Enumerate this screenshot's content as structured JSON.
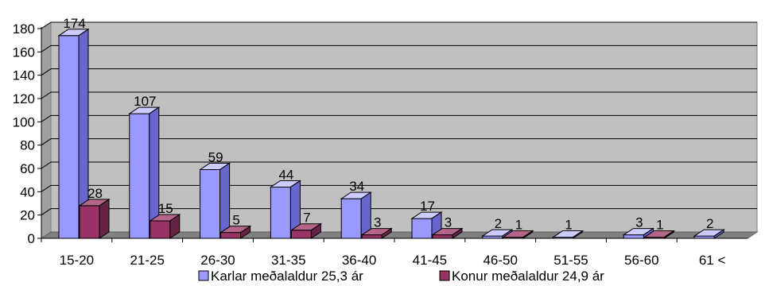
{
  "chart_data": {
    "type": "bar",
    "categories": [
      "15-20",
      "21-25",
      "26-30",
      "31-35",
      "36-40",
      "41-45",
      "46-50",
      "51-55",
      "56-60",
      "61 <"
    ],
    "series": [
      {
        "name": "Karlar meðalaldur 25,3 ár",
        "values": [
          174,
          107,
          59,
          44,
          34,
          17,
          2,
          1,
          3,
          2
        ],
        "labels": [
          "174",
          "107",
          "59",
          "44",
          "34",
          "17",
          "2",
          "1",
          "3",
          "2"
        ]
      },
      {
        "name": "Konur meðalaldur 24,9 ár",
        "values": [
          28,
          15,
          5,
          7,
          3,
          3,
          1,
          null,
          1,
          null
        ],
        "labels": [
          "28",
          "15",
          "5",
          "7",
          "3",
          "3",
          "1",
          "",
          "1",
          ""
        ]
      }
    ],
    "ylim": [
      0,
      180
    ],
    "yticks": [
      "0",
      "20",
      "40",
      "60",
      "80",
      "100",
      "120",
      "140",
      "160",
      "180"
    ],
    "grid": true,
    "legend_position": "bottom"
  },
  "colors": {
    "series_front": [
      "#9999ff",
      "#993366"
    ],
    "series_top": [
      "#ccccff",
      "#b3668a"
    ],
    "series_side": [
      "#6666cc",
      "#662244"
    ],
    "plot_back": "#c0c0c0",
    "plot_floor": "#808080",
    "plot_side": "#a0a0a0"
  }
}
